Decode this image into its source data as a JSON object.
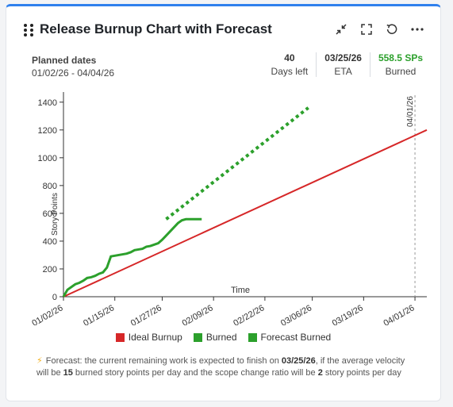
{
  "widget": {
    "title": "Release Burnup Chart with Forecast"
  },
  "planned": {
    "label": "Planned dates",
    "range": "01/02/26 - 04/04/26"
  },
  "stats": [
    {
      "value": "40",
      "label": "Days left"
    },
    {
      "value": "03/25/26",
      "label": "ETA"
    },
    {
      "value": "558.5 SPs",
      "label": "Burned"
    }
  ],
  "icons": [
    "drag-handle-icon",
    "collapse-icon",
    "fullscreen-icon",
    "refresh-icon",
    "more-icon"
  ],
  "colors": {
    "ideal": "#d62728",
    "burned": "#2ca02c",
    "forecast": "#2ca02c",
    "accent": "#2f80ed"
  },
  "chart_data": {
    "type": "line",
    "xlabel": "Time",
    "ylabel": "Story Points",
    "ylim": [
      0,
      1450
    ],
    "yticks": [
      0,
      200,
      400,
      600,
      800,
      1000,
      1200,
      1400
    ],
    "xticks": [
      "01/02/26",
      "01/15/26",
      "01/27/26",
      "02/09/26",
      "02/22/26",
      "03/06/26",
      "03/19/26",
      "04/01/26"
    ],
    "xtick_days": [
      0,
      13,
      25,
      38,
      51,
      63,
      76,
      89
    ],
    "xlim_days": [
      0,
      92
    ],
    "marker_line": {
      "label": "04/01/26",
      "day": 89
    },
    "series": [
      {
        "name": "Ideal Burnup",
        "style": "solid",
        "x": [
          0,
          92
        ],
        "y": [
          0,
          1200
        ]
      },
      {
        "name": "Burned",
        "style": "solid",
        "x": [
          0,
          1,
          2,
          3,
          4,
          5,
          6,
          7,
          8,
          9,
          10,
          11,
          12,
          13,
          14,
          15,
          16,
          17,
          18,
          19,
          20,
          21,
          22,
          23,
          24,
          25,
          26,
          27,
          28,
          29,
          30,
          31,
          32,
          33,
          34,
          35
        ],
        "y": [
          0,
          50,
          70,
          90,
          100,
          115,
          135,
          140,
          150,
          165,
          175,
          210,
          290,
          295,
          300,
          305,
          310,
          320,
          335,
          340,
          345,
          360,
          365,
          375,
          385,
          410,
          440,
          470,
          500,
          530,
          550,
          558,
          558,
          558,
          558,
          558
        ]
      },
      {
        "name": "Forecast Burned",
        "style": "dotted",
        "x": [
          26,
          62
        ],
        "y": [
          558,
          1360
        ]
      }
    ]
  },
  "note": {
    "before": "Forecast: the current remaining work is expected to finish on ",
    "eta": "03/25/26",
    "mid1": ", if the average velocity will be ",
    "velocity": "15",
    "mid2": " burned story points per day and the scope change ratio will be ",
    "scope": "2",
    "after": " story points per day"
  }
}
